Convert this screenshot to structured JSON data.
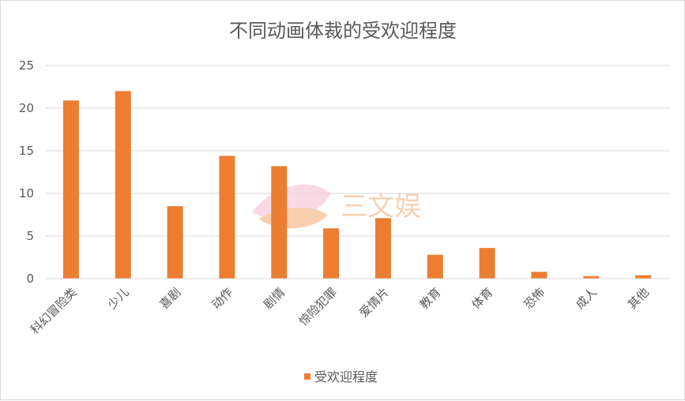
{
  "chart_data": {
    "type": "bar",
    "title": "不同动画体裁的受欢迎程度",
    "xlabel": "",
    "ylabel": "",
    "categories": [
      "科幻冒险类",
      "少儿",
      "喜剧",
      "动作",
      "剧情",
      "惊险犯罪",
      "爱情片",
      "教育",
      "体育",
      "恐怖",
      "成人",
      "其他"
    ],
    "series": [
      {
        "name": "受欢迎程度",
        "values": [
          20.9,
          22.0,
          8.5,
          14.4,
          13.2,
          5.9,
          7.1,
          2.8,
          3.6,
          0.8,
          0.3,
          0.4
        ]
      }
    ],
    "yticks": [
      "0",
      "5",
      "10",
      "15",
      "20",
      "25"
    ],
    "ylim": [
      0,
      25
    ],
    "grid": true,
    "legend_position": "bottom",
    "colors": {
      "bar": "#ed7d31",
      "grid": "#d9d9d9",
      "text": "#595959"
    }
  },
  "watermark": {
    "text": "三文娱"
  }
}
